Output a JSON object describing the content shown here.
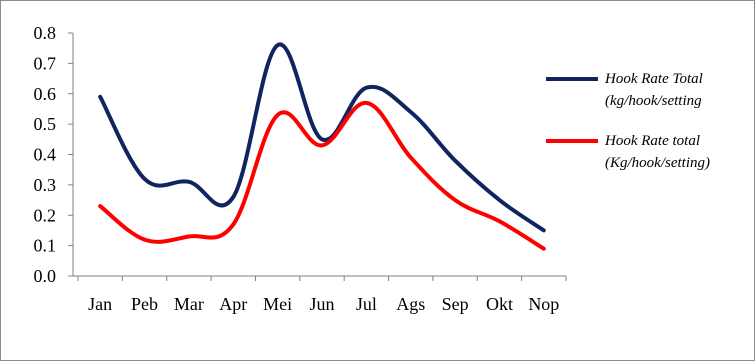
{
  "chart_data": {
    "type": "line",
    "title": "",
    "xlabel": "",
    "ylabel": "",
    "categories": [
      "Jan",
      "Peb",
      "Mar",
      "Apr",
      "Mei",
      "Jun",
      "Jul",
      "Ags",
      "Sep",
      "Okt",
      "Nop"
    ],
    "ylim": [
      0,
      0.8
    ],
    "yticks": [
      "0.0",
      "0.1",
      "0.2",
      "0.3",
      "0.4",
      "0.5",
      "0.6",
      "0.7",
      "0.8"
    ],
    "grid": false,
    "smooth": true,
    "legend_position": "right",
    "series": [
      {
        "name_lines": [
          "Hook Rate Total",
          "(kg/hook/setting"
        ],
        "color": "#12245f",
        "values": [
          0.59,
          0.32,
          0.31,
          0.26,
          0.76,
          0.45,
          0.62,
          0.54,
          0.38,
          0.25,
          0.15
        ]
      },
      {
        "name_lines": [
          "Hook Rate total",
          "(Kg/hook/setting)"
        ],
        "color": "#ff0000",
        "values": [
          0.23,
          0.12,
          0.13,
          0.17,
          0.53,
          0.43,
          0.57,
          0.39,
          0.25,
          0.18,
          0.09
        ]
      }
    ]
  }
}
